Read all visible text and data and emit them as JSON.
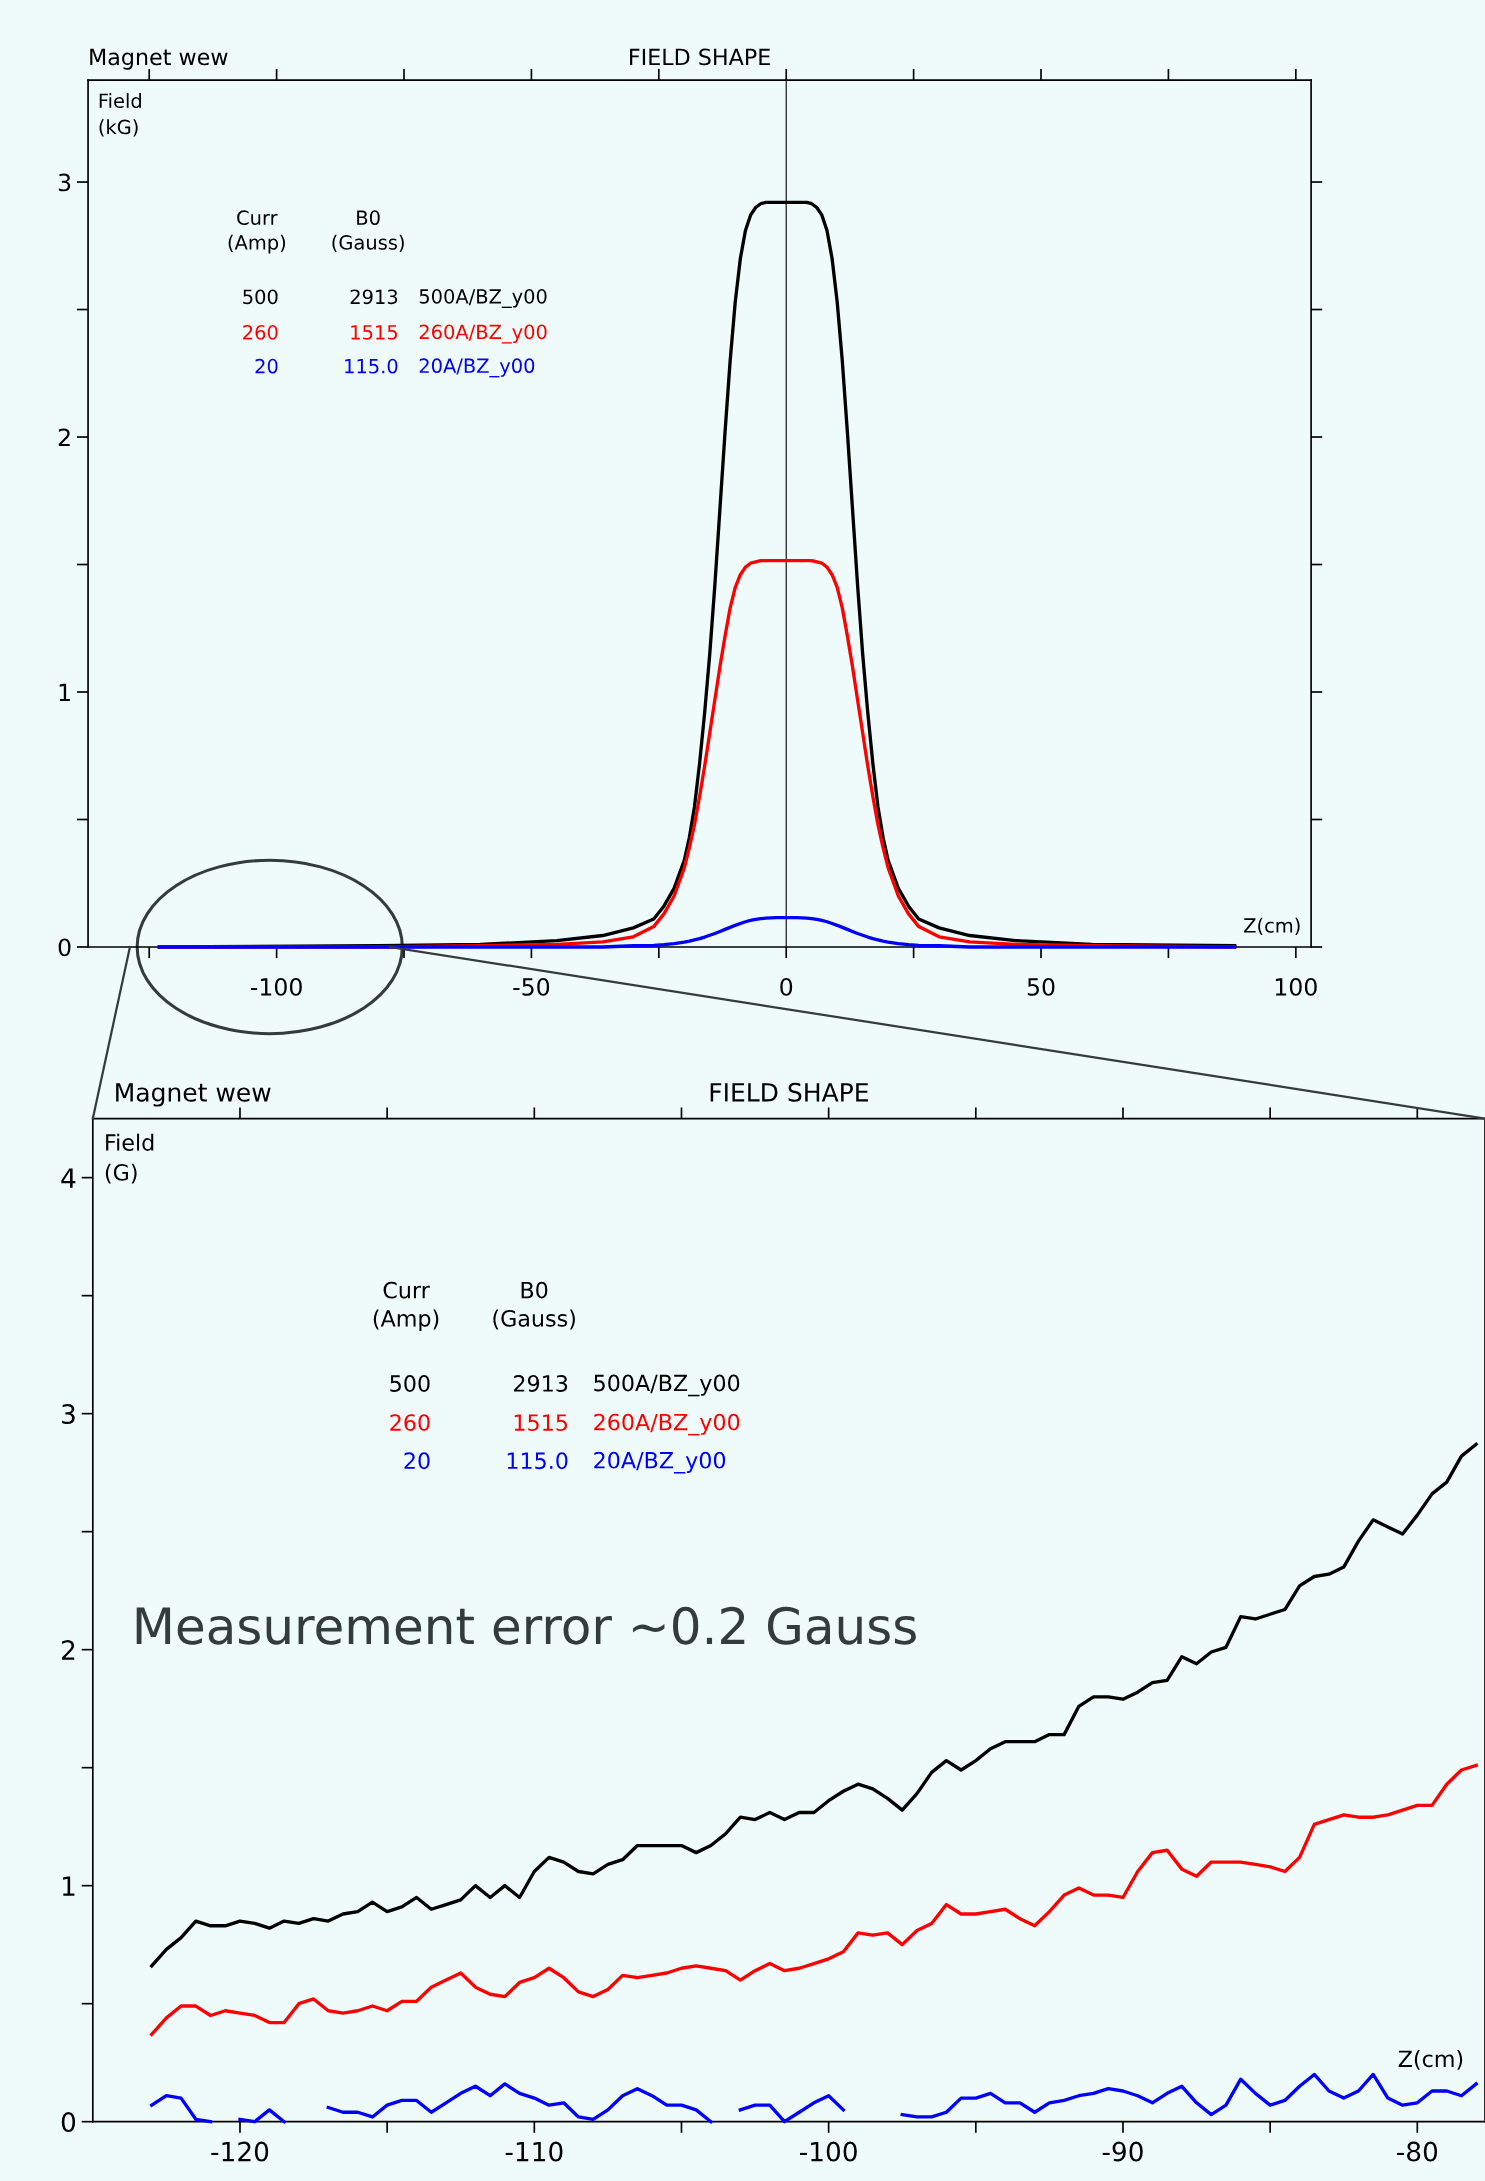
{
  "chart_data": [
    {
      "type": "line",
      "title": "FIELD SHAPE",
      "subtitle": "Magnet wew",
      "xlabel": "Z(cm)",
      "ylabel": "Field\n(kG)",
      "annotations": [
        "Curr\n(Amp)",
        "B0\n(Gauss)",
        "500",
        "2913",
        "260",
        "1515",
        "20",
        "115.0"
      ],
      "xlim": [
        -137,
        103
      ],
      "ylim": [
        0,
        3.4
      ],
      "xticks": [
        {
          "value": -125,
          "label": null
        },
        -100,
        {
          "value": -75,
          "label": null
        },
        -50,
        {
          "value": -25,
          "label": null
        },
        0,
        {
          "value": 25,
          "label": null
        },
        50,
        {
          "value": 75,
          "label": null
        },
        100
      ],
      "yticks": [
        0,
        {
          "value": 0.5,
          "label": null
        },
        1,
        {
          "value": 1.5,
          "label": null
        },
        2,
        {
          "value": 2.5,
          "label": null
        },
        3
      ],
      "ref_lines": [
        {
          "axis": "x",
          "value": 0,
          "color": "#000000"
        }
      ],
      "grid": false,
      "legend": false,
      "marker": "none",
      "line_style": "solid",
      "x": [
        -123,
        -80,
        -60,
        -45,
        -36,
        -30,
        -26,
        -24,
        -22,
        -20,
        -19,
        -18,
        -17,
        -16,
        -15,
        -14,
        -13,
        -12,
        -11,
        -10,
        -9,
        -8,
        -7,
        -6,
        -5,
        -4,
        -2,
        0,
        2,
        4,
        5,
        6,
        7,
        8,
        9,
        10,
        11,
        12,
        13,
        14,
        15,
        16,
        17,
        18,
        19,
        20,
        22,
        24,
        26,
        30,
        36,
        45,
        60,
        88
      ],
      "series": [
        {
          "name": "500A/BZ_y00",
          "color": "#000000",
          "values": [
            0,
            0.005,
            0.01,
            0.025,
            0.045,
            0.075,
            0.11,
            0.16,
            0.23,
            0.34,
            0.43,
            0.55,
            0.72,
            0.92,
            1.15,
            1.42,
            1.72,
            2.02,
            2.3,
            2.53,
            2.7,
            2.81,
            2.87,
            2.9,
            2.915,
            2.92,
            2.92,
            2.92,
            2.92,
            2.92,
            2.915,
            2.9,
            2.87,
            2.81,
            2.7,
            2.53,
            2.3,
            2.02,
            1.72,
            1.42,
            1.15,
            0.92,
            0.72,
            0.55,
            0.43,
            0.34,
            0.23,
            0.16,
            0.11,
            0.075,
            0.045,
            0.025,
            0.01,
            0.005
          ]
        },
        {
          "name": "260A/BZ_y00",
          "color": "#ff0000",
          "values": [
            0,
            0,
            0.005,
            0.01,
            0.02,
            0.04,
            0.08,
            0.13,
            0.2,
            0.31,
            0.39,
            0.48,
            0.59,
            0.71,
            0.84,
            0.97,
            1.1,
            1.22,
            1.33,
            1.41,
            1.46,
            1.49,
            1.505,
            1.51,
            1.515,
            1.515,
            1.515,
            1.515,
            1.515,
            1.515,
            1.515,
            1.51,
            1.505,
            1.49,
            1.46,
            1.41,
            1.33,
            1.22,
            1.1,
            0.97,
            0.84,
            0.71,
            0.59,
            0.48,
            0.39,
            0.31,
            0.2,
            0.13,
            0.08,
            0.04,
            0.02,
            0.01,
            0.005,
            0
          ]
        },
        {
          "name": "20A/BZ_y00",
          "color": "#0000ff",
          "values": [
            0,
            0,
            0,
            0,
            0,
            0.005,
            0.006,
            0.009,
            0.013,
            0.019,
            0.023,
            0.028,
            0.033,
            0.039,
            0.046,
            0.053,
            0.061,
            0.069,
            0.077,
            0.085,
            0.092,
            0.099,
            0.104,
            0.108,
            0.111,
            0.113,
            0.115,
            0.115,
            0.115,
            0.113,
            0.111,
            0.108,
            0.104,
            0.099,
            0.092,
            0.085,
            0.077,
            0.069,
            0.061,
            0.053,
            0.046,
            0.039,
            0.033,
            0.028,
            0.023,
            0.019,
            0.013,
            0.009,
            0.006,
            0.005,
            0,
            0,
            0,
            0
          ]
        }
      ]
    },
    {
      "type": "line",
      "title": "FIELD SHAPE",
      "subtitle": "Magnet wew",
      "xlabel": "Z(cm)",
      "ylabel": "Field\n(G)",
      "annotations": [
        "Curr\n(Amp)",
        "B0\n(Gauss)",
        "500",
        "2913",
        "260",
        "1515",
        "20",
        "115.0",
        "Measurement error ~0.2 Gauss"
      ],
      "xlim": [
        -125,
        -77.7
      ],
      "ylim": [
        0,
        4.25
      ],
      "xticks": [
        -120,
        {
          "value": -115,
          "label": null
        },
        -110,
        {
          "value": -105,
          "label": null
        },
        -100,
        {
          "value": -95,
          "label": null
        },
        -90,
        {
          "value": -85,
          "label": null
        },
        -80
      ],
      "yticks": [
        0,
        {
          "value": 0.5,
          "label": null
        },
        1,
        {
          "value": 1.5,
          "label": null
        },
        2,
        {
          "value": 2.5,
          "label": null
        },
        3,
        {
          "value": 3.5,
          "label": null
        },
        4
      ],
      "grid": false,
      "legend": false,
      "marker": "none",
      "line_style": "solid",
      "x": [
        -123,
        -122.5,
        -122,
        -121.5,
        -121,
        -120.5,
        -120,
        -119.5,
        -119,
        -118.5,
        -118,
        -117.5,
        -117,
        -116.5,
        -116,
        -115.5,
        -115,
        -114.5,
        -114,
        -113.5,
        -113,
        -112.5,
        -112,
        -111.5,
        -111,
        -110.5,
        -110,
        -109.5,
        -109,
        -108.5,
        -108,
        -107.5,
        -107,
        -106.5,
        -106,
        -105.5,
        -105,
        -104.5,
        -104,
        -103.5,
        -103,
        -102.5,
        -102,
        -101.5,
        -101,
        -100.5,
        -100,
        -99.5,
        -99,
        -98.5,
        -98,
        -97.5,
        -97,
        -96.5,
        -96,
        -95.5,
        -95,
        -94.5,
        -94,
        -93.5,
        -93,
        -92.5,
        -92,
        -91.5,
        -91,
        -90.5,
        -90,
        -89.5,
        -89,
        -88.5,
        -88,
        -87.5,
        -87,
        -86.5,
        -86,
        -85.5,
        -85,
        -84.5,
        -84,
        -83.5,
        -83,
        -82.5,
        -82,
        -81.5,
        -81,
        -80.5,
        -80,
        -79.5,
        -79,
        -78.5,
        -78
      ],
      "series": [
        {
          "name": "500A/BZ_y00",
          "color": "#000000",
          "values": [
            0.66,
            0.73,
            0.78,
            0.85,
            0.83,
            0.83,
            0.85,
            0.84,
            0.82,
            0.85,
            0.84,
            0.86,
            0.85,
            0.88,
            0.89,
            0.93,
            0.89,
            0.91,
            0.95,
            0.9,
            0.92,
            0.94,
            1.0,
            0.95,
            1.0,
            0.95,
            1.06,
            1.12,
            1.1,
            1.06,
            1.05,
            1.09,
            1.11,
            1.17,
            1.17,
            1.17,
            1.17,
            1.14,
            1.17,
            1.22,
            1.29,
            1.28,
            1.31,
            1.28,
            1.31,
            1.31,
            1.36,
            1.4,
            1.43,
            1.41,
            1.37,
            1.32,
            1.39,
            1.48,
            1.53,
            1.49,
            1.53,
            1.58,
            1.61,
            1.61,
            1.61,
            1.64,
            1.64,
            1.76,
            1.8,
            1.8,
            1.79,
            1.82,
            1.86,
            1.87,
            1.97,
            1.94,
            1.99,
            2.01,
            2.14,
            2.13,
            2.15,
            2.17,
            2.27,
            2.31,
            2.32,
            2.35,
            2.46,
            2.55,
            2.52,
            2.49,
            2.57,
            2.66,
            2.71,
            2.82,
            2.87
          ]
        },
        {
          "name": "260A/BZ_y00",
          "color": "#ff0000",
          "values": [
            0.37,
            0.44,
            0.49,
            0.49,
            0.45,
            0.47,
            0.46,
            0.45,
            0.42,
            0.42,
            0.5,
            0.52,
            0.47,
            0.46,
            0.47,
            0.49,
            0.47,
            0.51,
            0.51,
            0.57,
            0.6,
            0.63,
            0.57,
            0.54,
            0.53,
            0.59,
            0.61,
            0.65,
            0.61,
            0.55,
            0.53,
            0.56,
            0.62,
            0.61,
            0.62,
            0.63,
            0.65,
            0.66,
            0.65,
            0.64,
            0.6,
            0.64,
            0.67,
            0.64,
            0.65,
            0.67,
            0.69,
            0.72,
            0.8,
            0.79,
            0.8,
            0.75,
            0.81,
            0.84,
            0.92,
            0.88,
            0.88,
            0.89,
            0.9,
            0.86,
            0.83,
            0.89,
            0.96,
            0.99,
            0.96,
            0.96,
            0.95,
            1.06,
            1.14,
            1.15,
            1.07,
            1.04,
            1.1,
            1.1,
            1.1,
            1.09,
            1.08,
            1.06,
            1.12,
            1.26,
            1.28,
            1.3,
            1.29,
            1.29,
            1.3,
            1.32,
            1.34,
            1.34,
            1.43,
            1.49,
            1.51
          ]
        },
        {
          "name": "20A/BZ_y00",
          "color": "#0000ff",
          "values": [
            0.07,
            0.11,
            0.1,
            0.01,
            0.0,
            null,
            0.01,
            0.0,
            0.05,
            0.0,
            null,
            null,
            0.06,
            0.04,
            0.04,
            0.02,
            0.07,
            0.09,
            0.09,
            0.04,
            0.08,
            0.12,
            0.15,
            0.11,
            0.16,
            0.12,
            0.1,
            0.07,
            0.08,
            0.02,
            0.01,
            0.05,
            0.11,
            0.14,
            0.11,
            0.07,
            0.07,
            0.05,
            0.0,
            null,
            0.05,
            0.07,
            0.07,
            0.0,
            0.04,
            0.08,
            0.11,
            0.05,
            null,
            null,
            null,
            0.03,
            0.02,
            0.02,
            0.04,
            0.1,
            0.1,
            0.12,
            0.08,
            0.08,
            0.04,
            0.08,
            0.09,
            0.11,
            0.12,
            0.14,
            0.13,
            0.11,
            0.08,
            0.12,
            0.15,
            0.08,
            0.03,
            0.07,
            0.18,
            0.12,
            0.07,
            0.09,
            0.15,
            0.2,
            0.13,
            0.1,
            0.13,
            0.2,
            0.1,
            0.07,
            0.08,
            0.13,
            0.13,
            0.11,
            0.16
          ]
        }
      ]
    }
  ]
}
